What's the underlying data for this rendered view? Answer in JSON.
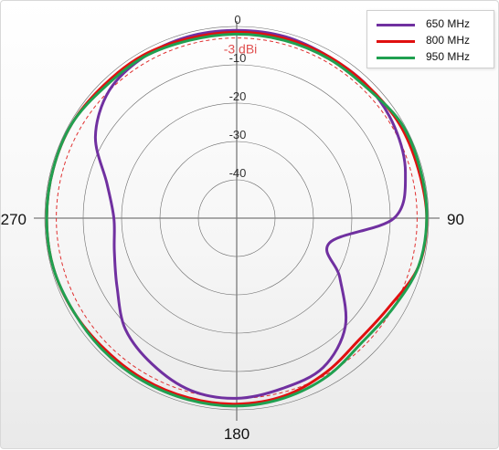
{
  "chart_data": {
    "type": "polar",
    "radial_ticks": [
      "0",
      "-10",
      "-20",
      "-30",
      "-40"
    ],
    "angle_labels": [
      "90",
      "180",
      "270"
    ],
    "reference": {
      "label": "-3 dBi",
      "value": -3
    },
    "radial_range": [
      -50,
      0
    ],
    "angle_samples_deg": [
      0,
      15,
      30,
      45,
      60,
      75,
      90,
      105,
      120,
      135,
      150,
      165,
      180,
      195,
      210,
      225,
      240,
      255,
      270,
      285,
      300,
      315,
      330,
      345
    ],
    "series": [
      {
        "name": "650 MHz",
        "color": "#7030a0",
        "values": [
          -1,
          -1,
          -1.5,
          -1.5,
          -2.5,
          -4.5,
          -9,
          -25,
          -19,
          -10,
          -5,
          -4,
          -3,
          -3.5,
          -6,
          -9,
          -14,
          -17,
          -18,
          -15,
          -7.5,
          -3,
          -1.5,
          -1
        ]
      },
      {
        "name": "800 MHz",
        "color": "#e01010",
        "values": [
          -1.5,
          -1.5,
          -1.5,
          -1.5,
          -1,
          -1,
          -0.5,
          -1,
          -4,
          -5,
          -3.5,
          -2,
          -1.5,
          -1.5,
          -1.5,
          -1.5,
          -1,
          -0.5,
          -0.5,
          -0.5,
          -0.5,
          -1,
          -1,
          -1.5
        ]
      },
      {
        "name": "950 MHz",
        "color": "#20a050",
        "values": [
          -2,
          -2,
          -2,
          -2,
          -0.5,
          -0.5,
          -0.5,
          -1,
          -3,
          -4,
          -2.5,
          -1.5,
          -1,
          -1,
          -1,
          -1,
          -1,
          -0.5,
          -0.5,
          -0.5,
          -0.5,
          -1.5,
          -1.5,
          -2
        ]
      }
    ]
  }
}
